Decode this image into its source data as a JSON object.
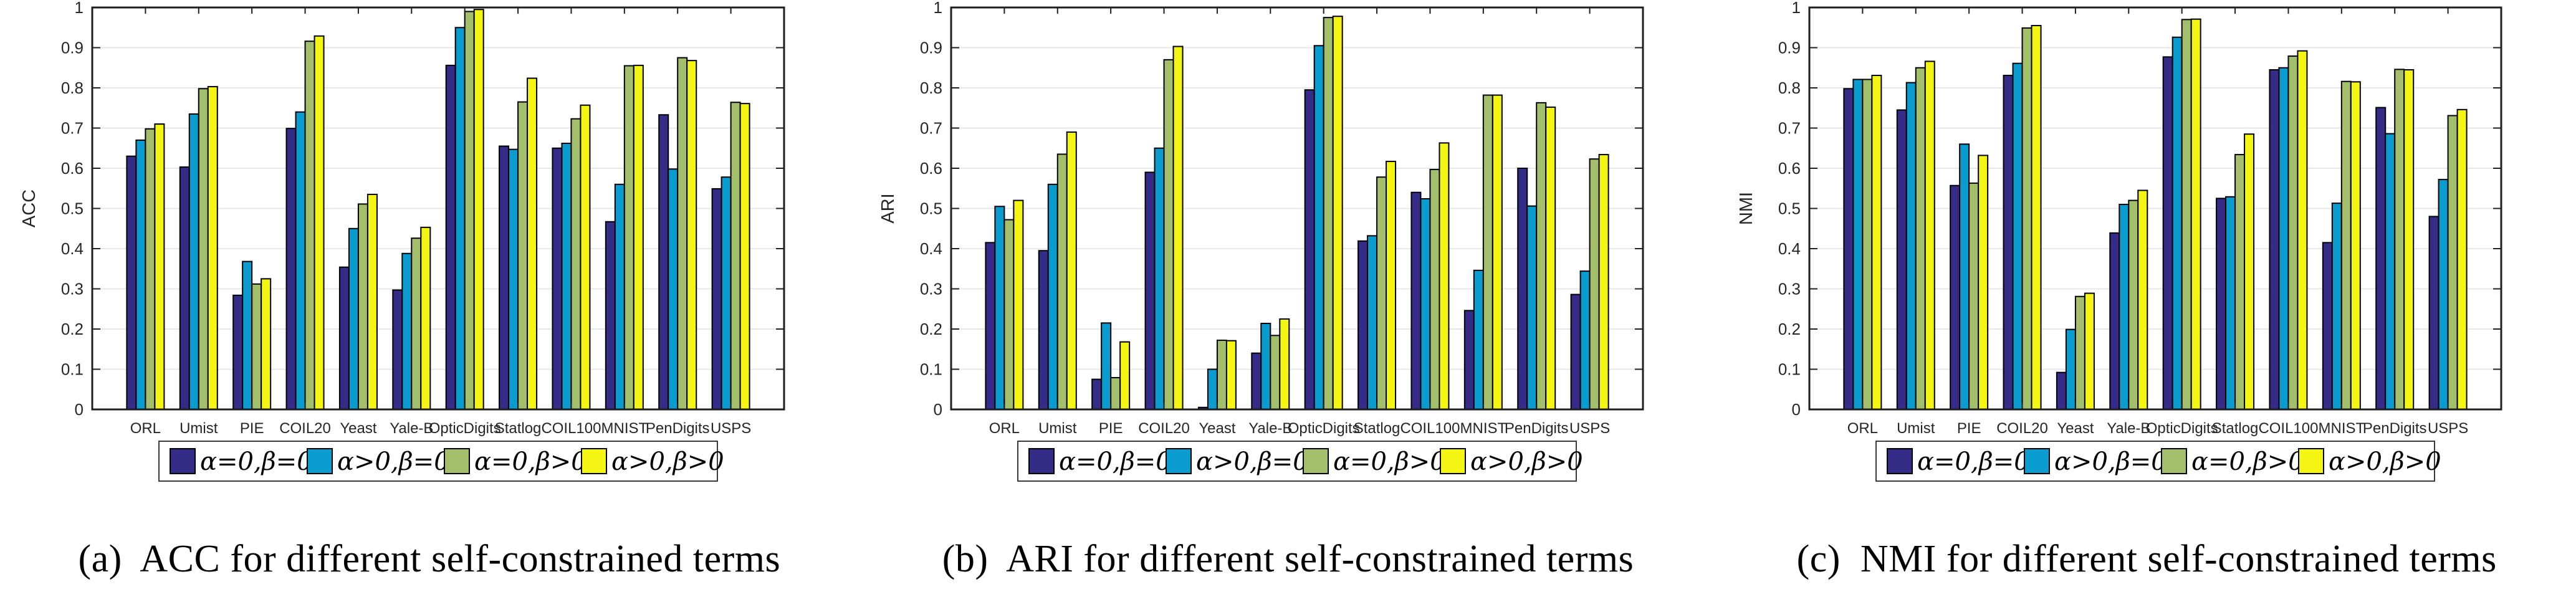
{
  "figure_type": "three grouped bar charts comparing clustering metrics for different self-constrained terms",
  "legend": {
    "entries": [
      {
        "label": "α=0,β=0",
        "color": "#342C87"
      },
      {
        "label": "α>0,β=0",
        "color": "#0A9CCF"
      },
      {
        "label": "α=0,β>0",
        "color": "#A4BF6B"
      },
      {
        "label": "α>0,β>0",
        "color": "#F4F512"
      }
    ]
  },
  "axis_style": {
    "axis_color": "#1f1f1f",
    "tick_label_color": "#262626",
    "grid_color": "#E7E7E7",
    "bar_edge_color": "#000000",
    "yticks": [
      "0",
      "0.1",
      "0.2",
      "0.3",
      "0.4",
      "0.5",
      "0.6",
      "0.7",
      "0.8",
      "0.9",
      "1"
    ]
  },
  "chart_data": [
    {
      "type": "bar",
      "title": "",
      "xlabel": "",
      "ylabel": "ACC",
      "caption": "(a)  ACC for different self-constrained terms",
      "ylim": [
        0,
        1
      ],
      "ytick_step": 0.1,
      "grid": true,
      "legend_position": "below",
      "categories": [
        "ORL",
        "Umist",
        "PIE",
        "COIL20",
        "Yeast",
        "Yale-B",
        "OpticDigits",
        "Statlog",
        "COIL100",
        "MNIST",
        "PenDigits",
        "USPS"
      ],
      "series": [
        {
          "name": "α=0,β=0",
          "color": "#342C87",
          "values": [
            0.63,
            0.603,
            0.284,
            0.699,
            0.354,
            0.297,
            0.856,
            0.655,
            0.65,
            0.467,
            0.733,
            0.549
          ]
        },
        {
          "name": "α>0,β=0",
          "color": "#0A9CCF",
          "values": [
            0.67,
            0.735,
            0.368,
            0.74,
            0.45,
            0.388,
            0.95,
            0.647,
            0.662,
            0.56,
            0.598,
            0.578
          ]
        },
        {
          "name": "α=0,β>0",
          "color": "#A4BF6B",
          "values": [
            0.698,
            0.798,
            0.312,
            0.916,
            0.511,
            0.426,
            0.99,
            0.765,
            0.723,
            0.855,
            0.875,
            0.764
          ]
        },
        {
          "name": "α>0,β>0",
          "color": "#F4F512",
          "values": [
            0.71,
            0.803,
            0.325,
            0.929,
            0.535,
            0.453,
            0.995,
            0.824,
            0.757,
            0.856,
            0.868,
            0.761
          ]
        }
      ]
    },
    {
      "type": "bar",
      "title": "",
      "xlabel": "",
      "ylabel": "ARI",
      "caption": "(b)  ARI for different self-constrained terms",
      "ylim": [
        0,
        1
      ],
      "ytick_step": 0.1,
      "grid": true,
      "legend_position": "below",
      "categories": [
        "ORL",
        "Umist",
        "PIE",
        "COIL20",
        "Yeast",
        "Yale-B",
        "OpticDigits",
        "Statlog",
        "COIL100",
        "MNIST",
        "PenDigits",
        "USPS"
      ],
      "series": [
        {
          "name": "α=0,β=0",
          "color": "#342C87",
          "values": [
            0.415,
            0.395,
            0.075,
            0.59,
            0.005,
            0.14,
            0.795,
            0.419,
            0.54,
            0.246,
            0.6,
            0.286
          ]
        },
        {
          "name": "α>0,β=0",
          "color": "#0A9CCF",
          "values": [
            0.505,
            0.56,
            0.215,
            0.65,
            0.1,
            0.214,
            0.905,
            0.432,
            0.524,
            0.346,
            0.506,
            0.344
          ]
        },
        {
          "name": "α=0,β>0",
          "color": "#A4BF6B",
          "values": [
            0.472,
            0.635,
            0.079,
            0.87,
            0.172,
            0.184,
            0.975,
            0.578,
            0.597,
            0.782,
            0.763,
            0.623
          ]
        },
        {
          "name": "α>0,β>0",
          "color": "#F4F512",
          "values": [
            0.52,
            0.69,
            0.168,
            0.903,
            0.171,
            0.225,
            0.978,
            0.617,
            0.663,
            0.782,
            0.752,
            0.634
          ]
        }
      ]
    },
    {
      "type": "bar",
      "title": "",
      "xlabel": "",
      "ylabel": "NMI",
      "caption": "(c)  NMI for different self-constrained terms",
      "ylim": [
        0,
        1
      ],
      "ytick_step": 0.1,
      "grid": true,
      "legend_position": "below",
      "categories": [
        "ORL",
        "Umist",
        "PIE",
        "COIL20",
        "Yeast",
        "Yale-B",
        "OpticDigits",
        "Statlog",
        "COIL100",
        "MNIST",
        "PenDigits",
        "USPS"
      ],
      "series": [
        {
          "name": "α=0,β=0",
          "color": "#342C87",
          "values": [
            0.798,
            0.745,
            0.557,
            0.831,
            0.092,
            0.439,
            0.877,
            0.525,
            0.845,
            0.415,
            0.751,
            0.48
          ]
        },
        {
          "name": "α>0,β=0",
          "color": "#0A9CCF",
          "values": [
            0.821,
            0.813,
            0.66,
            0.861,
            0.199,
            0.51,
            0.926,
            0.529,
            0.85,
            0.513,
            0.686,
            0.572
          ]
        },
        {
          "name": "α=0,β>0",
          "color": "#A4BF6B",
          "values": [
            0.821,
            0.85,
            0.563,
            0.949,
            0.281,
            0.52,
            0.97,
            0.634,
            0.879,
            0.816,
            0.846,
            0.731
          ]
        },
        {
          "name": "α>0,β>0",
          "color": "#F4F512",
          "values": [
            0.831,
            0.866,
            0.632,
            0.955,
            0.289,
            0.545,
            0.971,
            0.685,
            0.892,
            0.815,
            0.845,
            0.746
          ]
        }
      ]
    }
  ]
}
